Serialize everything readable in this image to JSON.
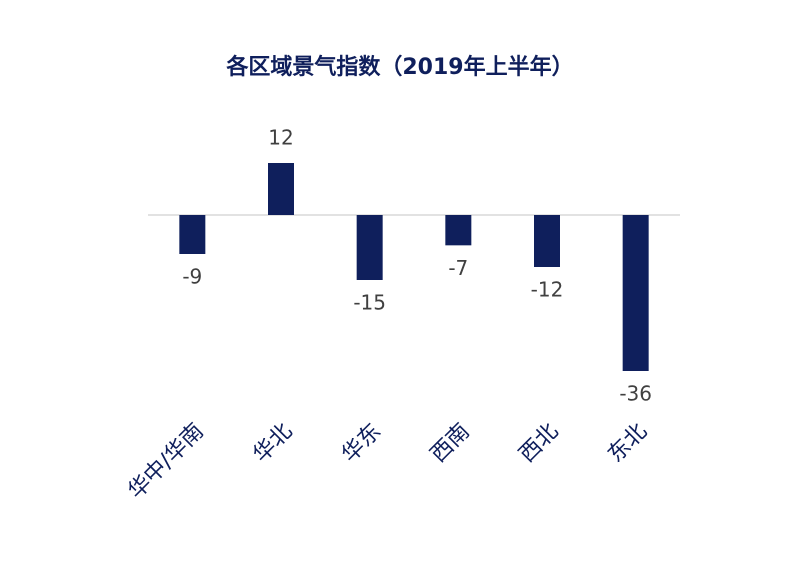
{
  "chart_data": {
    "type": "bar",
    "title": "各区域景气指数（2019年上半年）",
    "categories": [
      "华中/华南",
      "华北",
      "华东",
      "西南",
      "西北",
      "东北"
    ],
    "values": [
      -9,
      12,
      -15,
      -7,
      -12,
      -36
    ],
    "color": "#0f1f5c"
  }
}
